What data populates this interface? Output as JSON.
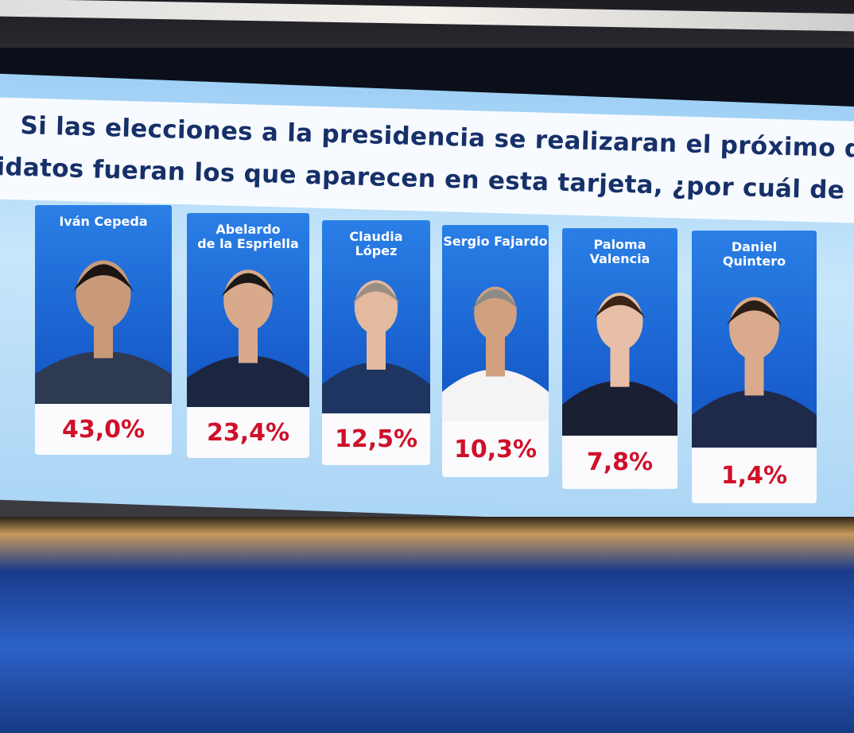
{
  "question": [
    "Si las elecciones a la presidencia se realizaran el próximo domingo,",
    "idatos fueran los que aparecen en esta tarjeta, ¿por cuál de ellos votar"
  ],
  "candidates": [
    {
      "name": [
        "Iván Cepeda"
      ],
      "result": "43,0%"
    },
    {
      "name": [
        "Abelardo",
        "de la Espriella"
      ],
      "result": "23,4%"
    },
    {
      "name": [
        "Claudia",
        "López"
      ],
      "result": "12,5%"
    },
    {
      "name": [
        "Sergio Fajardo"
      ],
      "result": "10,3%"
    },
    {
      "name": [
        "Paloma",
        "Valencia"
      ],
      "result": "7,8%"
    },
    {
      "name": [
        "Daniel",
        "Quintero"
      ],
      "result": "1,4%"
    }
  ]
}
